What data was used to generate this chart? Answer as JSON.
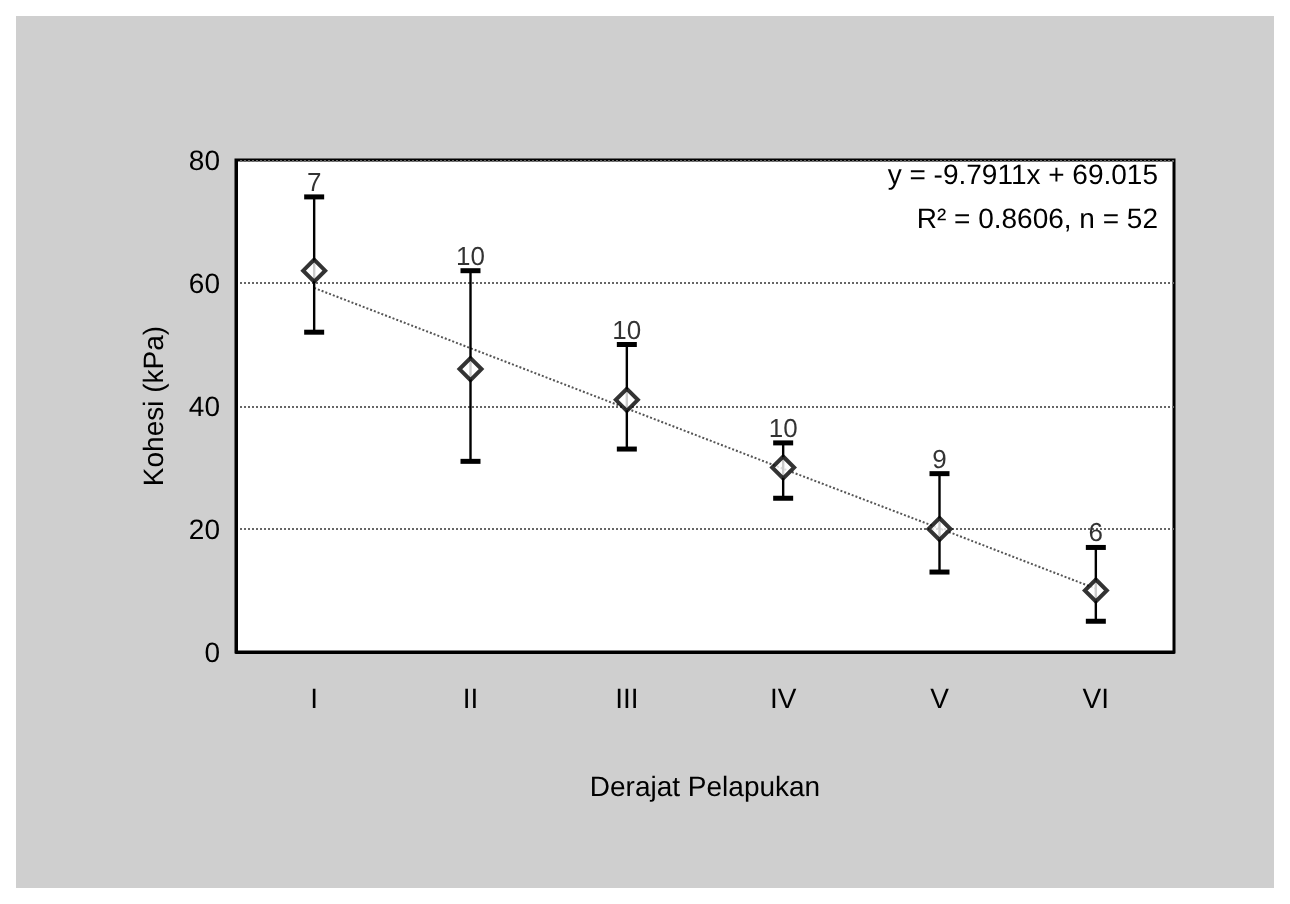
{
  "chart_data": {
    "type": "scatter",
    "xlabel": "Derajat Pelapukan",
    "ylabel": "Kohesi (kPa)",
    "categories": [
      "I",
      "II",
      "III",
      "IV",
      "V",
      "VI"
    ],
    "series": [
      {
        "color": "#000000",
        "marker": "diamond",
        "values": [
          62,
          46,
          41,
          30,
          20,
          10
        ],
        "errors": [
          [
            52,
            74
          ],
          [
            31,
            62
          ],
          [
            33,
            50
          ],
          [
            25,
            34
          ],
          [
            13,
            29
          ],
          [
            5,
            17
          ]
        ]
      },
      {
        "type": "line",
        "color": "#555555",
        "line_style": "dotted",
        "marker": "none",
        "x": [
          "I",
          "II",
          "III",
          "IV",
          "V",
          "VI"
        ],
        "values": [
          59.2,
          49.4,
          39.6,
          29.8,
          20.1,
          10.3
        ]
      }
    ],
    "ylim": [
      0,
      80
    ],
    "yticks": [
      0,
      20,
      40,
      60,
      80
    ],
    "grid": "y",
    "annotations": [
      "y = -9.7911x + 69.015",
      "R² = 0.8606, n = 52",
      {
        "text": "7",
        "x": "I",
        "y": 74
      },
      {
        "text": "10",
        "x": "II",
        "y": 62
      },
      {
        "text": "10",
        "x": "III",
        "y": 50
      },
      {
        "text": "10",
        "x": "IV",
        "y": 34
      },
      {
        "text": "9",
        "x": "V",
        "y": 29
      },
      {
        "text": "6",
        "x": "VI",
        "y": 17
      }
    ]
  }
}
